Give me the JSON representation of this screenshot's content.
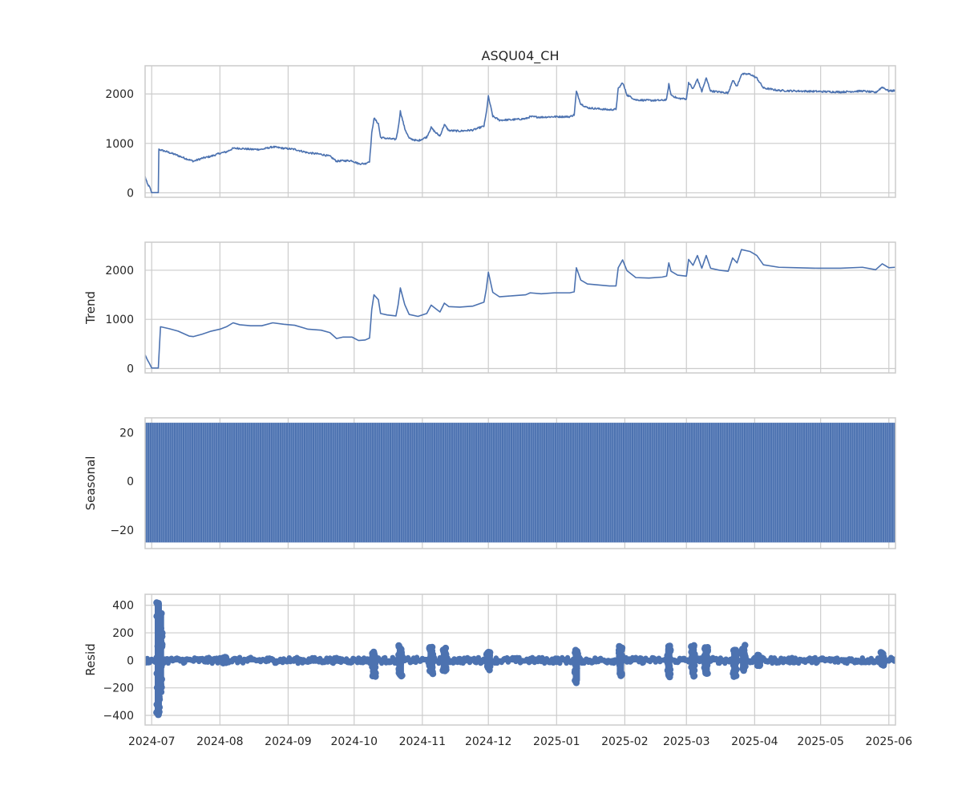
{
  "colors": {
    "series": "#4c72b0",
    "grid": "#cccccc",
    "background": "#ffffff"
  },
  "chart_data": {
    "type": "line",
    "title": "ASQU04_CH",
    "x_type": "date",
    "xlim": [
      "2024-06-28",
      "2025-06-04"
    ],
    "x_ticks": [
      "2024-07",
      "2024-08",
      "2024-09",
      "2024-10",
      "2024-11",
      "2024-12",
      "2025-01",
      "2025-02",
      "2025-03",
      "2025-04",
      "2025-05",
      "2025-06"
    ],
    "grid": true,
    "panels": [
      {
        "name": "observed",
        "ylabel": "",
        "ylim": [
          -90,
          2570
        ],
        "y_ticks": [
          0,
          1000,
          2000
        ],
        "points": [
          [
            "2024-06-28",
            330
          ],
          [
            "2024-06-29",
            180
          ],
          [
            "2024-06-30",
            120
          ],
          [
            "2024-07-01",
            5
          ],
          [
            "2024-07-03",
            5
          ],
          [
            "2024-07-04",
            5
          ],
          [
            "2024-07-04",
            880
          ],
          [
            "2024-07-08",
            830
          ],
          [
            "2024-07-12",
            770
          ],
          [
            "2024-07-16",
            700
          ],
          [
            "2024-07-20",
            640
          ],
          [
            "2024-07-24",
            700
          ],
          [
            "2024-07-28",
            740
          ],
          [
            "2024-08-01",
            800
          ],
          [
            "2024-08-04",
            830
          ],
          [
            "2024-08-07",
            900
          ],
          [
            "2024-08-10",
            900
          ],
          [
            "2024-08-15",
            880
          ],
          [
            "2024-08-20",
            880
          ],
          [
            "2024-08-25",
            930
          ],
          [
            "2024-08-30",
            900
          ],
          [
            "2024-09-04",
            880
          ],
          [
            "2024-09-10",
            810
          ],
          [
            "2024-09-16",
            780
          ],
          [
            "2024-09-20",
            740
          ],
          [
            "2024-09-23",
            640
          ],
          [
            "2024-09-26",
            650
          ],
          [
            "2024-09-30",
            650
          ],
          [
            "2024-10-03",
            590
          ],
          [
            "2024-10-06",
            590
          ],
          [
            "2024-10-08",
            640
          ],
          [
            "2024-10-09",
            1200
          ],
          [
            "2024-10-10",
            1510
          ],
          [
            "2024-10-12",
            1400
          ],
          [
            "2024-10-13",
            1120
          ],
          [
            "2024-10-16",
            1100
          ],
          [
            "2024-10-20",
            1080
          ],
          [
            "2024-10-21",
            1300
          ],
          [
            "2024-10-22",
            1650
          ],
          [
            "2024-10-24",
            1300
          ],
          [
            "2024-10-26",
            1100
          ],
          [
            "2024-10-30",
            1050
          ],
          [
            "2024-11-03",
            1130
          ],
          [
            "2024-11-05",
            1320
          ],
          [
            "2024-11-07",
            1220
          ],
          [
            "2024-11-09",
            1150
          ],
          [
            "2024-11-11",
            1380
          ],
          [
            "2024-11-13",
            1260
          ],
          [
            "2024-11-18",
            1250
          ],
          [
            "2024-11-24",
            1270
          ],
          [
            "2024-11-29",
            1350
          ],
          [
            "2024-11-30",
            1600
          ],
          [
            "2024-12-01",
            1950
          ],
          [
            "2024-12-03",
            1550
          ],
          [
            "2024-12-06",
            1470
          ],
          [
            "2024-12-12",
            1480
          ],
          [
            "2024-12-18",
            1500
          ],
          [
            "2024-12-20",
            1540
          ],
          [
            "2024-12-25",
            1530
          ],
          [
            "2024-12-31",
            1540
          ],
          [
            "2025-01-07",
            1540
          ],
          [
            "2025-01-09",
            1580
          ],
          [
            "2025-01-10",
            2050
          ],
          [
            "2025-01-12",
            1800
          ],
          [
            "2025-01-15",
            1720
          ],
          [
            "2025-01-20",
            1700
          ],
          [
            "2025-01-25",
            1680
          ],
          [
            "2025-01-28",
            1690
          ],
          [
            "2025-01-29",
            2100
          ],
          [
            "2025-01-31",
            2230
          ],
          [
            "2025-02-02",
            1980
          ],
          [
            "2025-02-06",
            1880
          ],
          [
            "2025-02-12",
            1870
          ],
          [
            "2025-02-18",
            1870
          ],
          [
            "2025-02-20",
            1890
          ],
          [
            "2025-02-21",
            2200
          ],
          [
            "2025-02-22",
            1980
          ],
          [
            "2025-02-25",
            1910
          ],
          [
            "2025-03-01",
            1900
          ],
          [
            "2025-03-02",
            2230
          ],
          [
            "2025-03-04",
            2100
          ],
          [
            "2025-03-06",
            2300
          ],
          [
            "2025-03-08",
            2050
          ],
          [
            "2025-03-10",
            2320
          ],
          [
            "2025-03-12",
            2060
          ],
          [
            "2025-03-16",
            2040
          ],
          [
            "2025-03-20",
            2020
          ],
          [
            "2025-03-22",
            2280
          ],
          [
            "2025-03-24",
            2150
          ],
          [
            "2025-03-26",
            2400
          ],
          [
            "2025-03-30",
            2400
          ],
          [
            "2025-04-02",
            2320
          ],
          [
            "2025-04-05",
            2120
          ],
          [
            "2025-04-12",
            2070
          ],
          [
            "2025-04-20",
            2060
          ],
          [
            "2025-04-30",
            2050
          ],
          [
            "2025-05-10",
            2040
          ],
          [
            "2025-05-20",
            2060
          ],
          [
            "2025-05-26",
            2030
          ],
          [
            "2025-05-29",
            2140
          ],
          [
            "2025-06-01",
            2060
          ],
          [
            "2025-06-04",
            2070
          ]
        ],
        "noise_amplitude": 18
      },
      {
        "name": "trend",
        "ylabel": "Trend",
        "ylim": [
          -90,
          2570
        ],
        "y_ticks": [
          0,
          1000,
          2000
        ],
        "points": [
          [
            "2024-06-28",
            280
          ],
          [
            "2024-06-29",
            180
          ],
          [
            "2024-06-30",
            100
          ],
          [
            "2024-07-01",
            10
          ],
          [
            "2024-07-03",
            10
          ],
          [
            "2024-07-04",
            10
          ],
          [
            "2024-07-05",
            850
          ],
          [
            "2024-07-09",
            810
          ],
          [
            "2024-07-13",
            760
          ],
          [
            "2024-07-18",
            660
          ],
          [
            "2024-07-20",
            650
          ],
          [
            "2024-07-24",
            700
          ],
          [
            "2024-07-28",
            760
          ],
          [
            "2024-08-01",
            800
          ],
          [
            "2024-08-04",
            850
          ],
          [
            "2024-08-07",
            930
          ],
          [
            "2024-08-10",
            890
          ],
          [
            "2024-08-15",
            870
          ],
          [
            "2024-08-20",
            870
          ],
          [
            "2024-08-25",
            930
          ],
          [
            "2024-08-30",
            900
          ],
          [
            "2024-09-04",
            880
          ],
          [
            "2024-09-10",
            800
          ],
          [
            "2024-09-16",
            780
          ],
          [
            "2024-09-20",
            730
          ],
          [
            "2024-09-23",
            610
          ],
          [
            "2024-09-26",
            640
          ],
          [
            "2024-09-30",
            640
          ],
          [
            "2024-10-03",
            570
          ],
          [
            "2024-10-06",
            580
          ],
          [
            "2024-10-08",
            620
          ],
          [
            "2024-10-09",
            1200
          ],
          [
            "2024-10-10",
            1500
          ],
          [
            "2024-10-12",
            1400
          ],
          [
            "2024-10-13",
            1120
          ],
          [
            "2024-10-16",
            1090
          ],
          [
            "2024-10-20",
            1070
          ],
          [
            "2024-10-21",
            1300
          ],
          [
            "2024-10-22",
            1640
          ],
          [
            "2024-10-24",
            1300
          ],
          [
            "2024-10-26",
            1100
          ],
          [
            "2024-10-30",
            1060
          ],
          [
            "2024-11-03",
            1120
          ],
          [
            "2024-11-05",
            1290
          ],
          [
            "2024-11-07",
            1220
          ],
          [
            "2024-11-09",
            1150
          ],
          [
            "2024-11-11",
            1330
          ],
          [
            "2024-11-13",
            1260
          ],
          [
            "2024-11-18",
            1250
          ],
          [
            "2024-11-24",
            1270
          ],
          [
            "2024-11-29",
            1350
          ],
          [
            "2024-11-30",
            1600
          ],
          [
            "2024-12-01",
            1960
          ],
          [
            "2024-12-03",
            1550
          ],
          [
            "2024-12-06",
            1460
          ],
          [
            "2024-12-12",
            1480
          ],
          [
            "2024-12-18",
            1500
          ],
          [
            "2024-12-20",
            1540
          ],
          [
            "2024-12-25",
            1520
          ],
          [
            "2024-12-31",
            1540
          ],
          [
            "2025-01-07",
            1540
          ],
          [
            "2025-01-09",
            1560
          ],
          [
            "2025-01-10",
            2050
          ],
          [
            "2025-01-12",
            1800
          ],
          [
            "2025-01-15",
            1720
          ],
          [
            "2025-01-20",
            1700
          ],
          [
            "2025-01-25",
            1680
          ],
          [
            "2025-01-28",
            1680
          ],
          [
            "2025-01-29",
            2050
          ],
          [
            "2025-01-31",
            2210
          ],
          [
            "2025-02-02",
            1990
          ],
          [
            "2025-02-06",
            1850
          ],
          [
            "2025-02-12",
            1840
          ],
          [
            "2025-02-18",
            1860
          ],
          [
            "2025-02-20",
            1880
          ],
          [
            "2025-02-21",
            2150
          ],
          [
            "2025-02-22",
            1980
          ],
          [
            "2025-02-25",
            1900
          ],
          [
            "2025-03-01",
            1880
          ],
          [
            "2025-03-02",
            2220
          ],
          [
            "2025-03-04",
            2100
          ],
          [
            "2025-03-06",
            2300
          ],
          [
            "2025-03-08",
            2040
          ],
          [
            "2025-03-10",
            2300
          ],
          [
            "2025-03-12",
            2040
          ],
          [
            "2025-03-16",
            2000
          ],
          [
            "2025-03-20",
            1980
          ],
          [
            "2025-03-22",
            2250
          ],
          [
            "2025-03-24",
            2150
          ],
          [
            "2025-03-26",
            2420
          ],
          [
            "2025-03-30",
            2380
          ],
          [
            "2025-04-02",
            2300
          ],
          [
            "2025-04-05",
            2110
          ],
          [
            "2025-04-12",
            2060
          ],
          [
            "2025-04-20",
            2050
          ],
          [
            "2025-04-30",
            2040
          ],
          [
            "2025-05-10",
            2040
          ],
          [
            "2025-05-20",
            2060
          ],
          [
            "2025-05-26",
            2010
          ],
          [
            "2025-05-29",
            2130
          ],
          [
            "2025-06-01",
            2050
          ],
          [
            "2025-06-04",
            2060
          ]
        ]
      },
      {
        "name": "seasonal",
        "ylabel": "Seasonal",
        "ylim": [
          -27.5,
          26
        ],
        "y_ticks": [
          -20,
          0,
          20
        ],
        "amplitude": [
          -25,
          24
        ],
        "period_days": 1
      },
      {
        "name": "resid",
        "ylabel": "Resid",
        "ylim": [
          -470,
          480
        ],
        "y_ticks": [
          -400,
          -200,
          0,
          200,
          400
        ],
        "base_band": [
          -15,
          15
        ],
        "bursts": [
          [
            "2024-07-04",
            -420,
            440
          ],
          [
            "2024-07-05",
            -230,
            350
          ],
          [
            "2024-08-03",
            -20,
            25
          ],
          [
            "2024-10-10",
            -120,
            70
          ],
          [
            "2024-10-22",
            -130,
            110
          ],
          [
            "2024-11-05",
            -100,
            100
          ],
          [
            "2024-11-11",
            -90,
            100
          ],
          [
            "2024-12-01",
            -80,
            60
          ],
          [
            "2025-01-10",
            -170,
            80
          ],
          [
            "2025-01-30",
            -120,
            120
          ],
          [
            "2025-02-21",
            -130,
            110
          ],
          [
            "2025-03-04",
            -120,
            110
          ],
          [
            "2025-03-10",
            -100,
            100
          ],
          [
            "2025-03-23",
            -120,
            80
          ],
          [
            "2025-03-27",
            -90,
            110
          ],
          [
            "2025-04-03",
            -40,
            40
          ],
          [
            "2025-05-29",
            -40,
            60
          ]
        ]
      }
    ]
  }
}
